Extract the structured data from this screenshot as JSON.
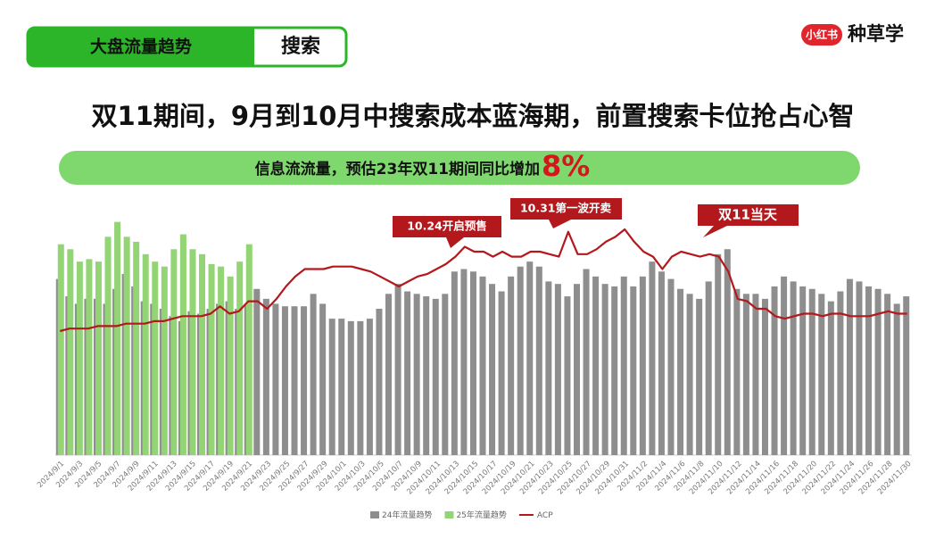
{
  "header": {
    "tabs": [
      "大盘流量趋势",
      "搜索"
    ],
    "logo_badge": "小红书",
    "logo_text": "种草学",
    "title": "双11期间，9月到10月中搜索成本蓝海期，前置搜索卡位抢占心智",
    "subtitle": "信息流流量，预估23年双11期间同比增加",
    "highlight": "8%"
  },
  "chart_data": {
    "type": "bar",
    "categories": [
      "2024/9/1",
      null,
      "2024/9/3",
      null,
      "2024/9/5",
      null,
      "2024/9/7",
      null,
      "2024/9/9",
      null,
      "2024/9/11",
      null,
      "2024/9/13",
      null,
      "2024/9/15",
      null,
      "2024/9/17",
      null,
      "2024/9/19",
      null,
      "2024/9/21",
      null,
      "2024/9/23",
      null,
      "2024/9/25",
      null,
      "2024/9/27",
      null,
      "2024/9/29",
      null,
      "2024/10/1",
      null,
      "2024/10/3",
      null,
      "2024/10/5",
      null,
      "2024/10/7",
      null,
      "2024/10/9",
      null,
      "2024/10/11",
      null,
      "2024/10/13",
      null,
      "2024/10/15",
      null,
      "2024/10/17",
      null,
      "2024/10/19",
      null,
      "2024/10/21",
      null,
      "2024/10/23",
      null,
      "2024/10/25",
      null,
      "2024/10/27",
      null,
      "2024/10/29",
      null,
      "2024/10/31",
      null,
      "2024/11/2",
      null,
      "2024/11/4",
      null,
      "2024/11/6",
      null,
      "2024/11/8",
      null,
      "2024/11/10",
      null,
      "2024/11/12",
      null,
      "2024/11/14",
      null,
      "2024/11/16",
      null,
      "2024/11/18",
      null,
      "2024/11/20",
      null,
      "2024/11/22",
      null,
      "2024/11/24",
      null,
      "2024/11/26",
      null,
      "2024/11/28",
      null,
      "2024/11/30"
    ],
    "series": [
      {
        "name": "24年流量趋势",
        "type": "bar",
        "color": "#8e8e8e",
        "values": [
          71,
          64,
          61,
          63,
          63,
          61,
          67,
          73,
          68,
          62,
          61,
          59,
          56,
          54,
          58,
          57,
          59,
          61,
          62,
          59,
          61,
          67,
          63,
          61,
          60,
          60,
          60,
          65,
          61,
          55,
          55,
          54,
          54,
          55,
          59,
          65,
          69,
          66,
          65,
          64,
          63,
          65,
          74,
          75,
          74,
          72,
          69,
          66,
          72,
          76,
          78,
          76,
          70,
          69,
          64,
          69,
          75,
          72,
          69,
          68,
          72,
          68,
          72,
          78,
          74,
          71,
          67,
          65,
          63,
          70,
          81,
          83,
          67,
          65,
          65,
          63,
          68,
          72,
          70,
          68,
          67,
          65,
          62,
          66,
          71,
          70,
          68,
          67,
          65,
          61,
          64
        ]
      },
      {
        "name": "25年流量趋势",
        "type": "bar",
        "color": "#93d474",
        "values": [
          85,
          83,
          78,
          79,
          78,
          88,
          94,
          88,
          86,
          81,
          78,
          76,
          83,
          89,
          83,
          81,
          77,
          76,
          72,
          78,
          85,
          null,
          null,
          null,
          null,
          null,
          null,
          null,
          null,
          null,
          null,
          null,
          null,
          null,
          null,
          null,
          null,
          null,
          null,
          null,
          null,
          null,
          null,
          null,
          null,
          null,
          null,
          null,
          null,
          null,
          null,
          null,
          null,
          null,
          null,
          null,
          null,
          null,
          null,
          null,
          null,
          null,
          null,
          null,
          null,
          null,
          null,
          null,
          null,
          null,
          null,
          null,
          null,
          null,
          null,
          null,
          null,
          null,
          null,
          null,
          null,
          null,
          null,
          null,
          null,
          null,
          null,
          null,
          null,
          null,
          null
        ]
      },
      {
        "name": "ACP",
        "type": "line",
        "color": "#b3181c",
        "values": [
          50,
          51,
          51,
          51,
          52,
          52,
          52,
          53,
          53,
          53,
          54,
          54,
          55,
          56,
          56,
          56,
          57,
          60,
          57,
          58,
          62,
          62,
          59,
          63,
          68,
          72,
          75,
          75,
          75,
          76,
          76,
          76,
          75,
          74,
          72,
          70,
          68,
          70,
          72,
          73,
          75,
          77,
          80,
          84,
          82,
          82,
          80,
          82,
          80,
          80,
          82,
          82,
          81,
          80,
          90,
          81,
          81,
          83,
          86,
          88,
          91,
          86,
          82,
          80,
          75,
          80,
          82,
          81,
          80,
          81,
          80,
          74,
          63,
          62,
          59,
          59,
          56,
          55,
          56,
          57,
          57,
          56,
          57,
          57,
          56,
          56,
          56,
          57,
          58,
          57,
          57
        ]
      }
    ],
    "ylim": [
      0,
      100
    ],
    "annotations": [
      "10.24开启预售",
      "10.31第一波开卖",
      "双11当天"
    ]
  }
}
